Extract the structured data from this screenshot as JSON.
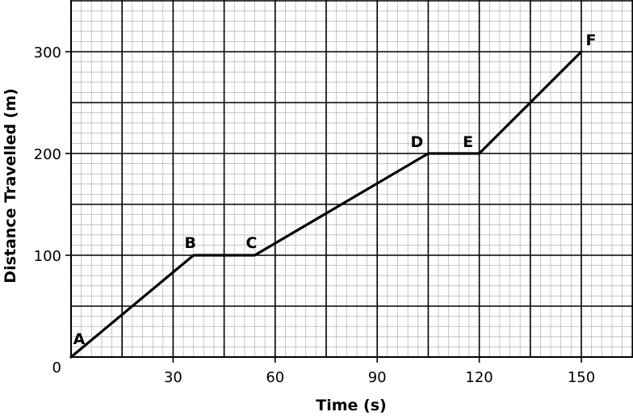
{
  "chart_data": {
    "type": "line",
    "title": "",
    "xlabel": "Time (s)",
    "ylabel": "Distance Travelled (m)",
    "xlim": [
      0,
      165
    ],
    "ylim": [
      0,
      350
    ],
    "x_ticks": [
      30,
      60,
      90,
      120,
      150
    ],
    "y_ticks": [
      100,
      200,
      300
    ],
    "origin_label": "0",
    "grid": true,
    "series": [
      {
        "name": "distance",
        "points": [
          {
            "label": "A",
            "x": 0,
            "y": 0
          },
          {
            "label": "B",
            "x": 36,
            "y": 100
          },
          {
            "label": "C",
            "x": 54,
            "y": 100
          },
          {
            "label": "D",
            "x": 105,
            "y": 200
          },
          {
            "label": "E",
            "x": 120,
            "y": 200
          },
          {
            "label": "F",
            "x": 150,
            "y": 300
          }
        ]
      }
    ]
  }
}
